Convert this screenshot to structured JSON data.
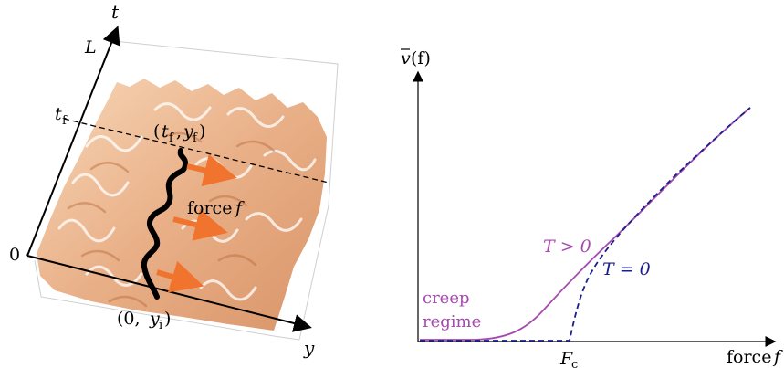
{
  "left_panel": {
    "axis_t": "t",
    "axis_y": "y",
    "tick_L": "L",
    "tick_tf": "t",
    "tick_tf_sub": "f",
    "origin": "0",
    "end_point": {
      "open": "(",
      "t": "t",
      "t_sub": "f",
      "comma": ",",
      "y": "y",
      "y_sub": "f",
      "close": ")"
    },
    "start_point": {
      "open": "(0,",
      "y": "y",
      "y_sub": "i",
      "close": ")"
    },
    "force_word": "force",
    "force_symbol": "f",
    "colors": {
      "interface": "#000000",
      "force_arrow": "#f0742e",
      "landscape_light": "#fbe6d2",
      "landscape_dark": "#c4794a"
    }
  },
  "right_panel": {
    "ylabel_v": "v",
    "ylabel_arg": "(f)",
    "xlabel_word": "force",
    "xlabel_symbol": "f",
    "tick_Fc": "F",
    "tick_Fc_sub": "c",
    "label_Tpos": "T > 0",
    "label_T0": "T = 0",
    "creep_line1": "creep",
    "creep_line2": "regime",
    "colors": {
      "T_pos": "#a64ab0",
      "T_zero": "#1a1f8c",
      "axes": "#000000"
    }
  }
}
